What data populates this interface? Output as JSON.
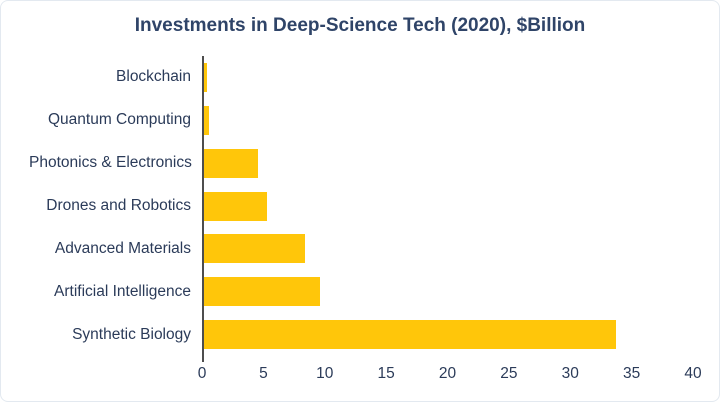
{
  "card": {
    "background": "#ffffff",
    "border_color": "#e3e9f0"
  },
  "chart_data": {
    "type": "bar",
    "orientation": "horizontal",
    "title": "Investments in Deep-Science Tech (2020), $Billion",
    "categories": [
      "Blockchain",
      "Quantum Computing",
      "Photonics & Electronics",
      "Drones and Robotics",
      "Advanced Materials",
      "Artificial Intelligence",
      "Synthetic Biology"
    ],
    "values": [
      0.4,
      0.6,
      4.6,
      5.3,
      8.4,
      9.6,
      33.7
    ],
    "xlabel": "",
    "ylabel": "",
    "xlim": [
      0,
      40
    ],
    "x_ticks": [
      "0",
      "5",
      "10",
      "15",
      "20",
      "25",
      "30",
      "35",
      "40"
    ],
    "grid": false,
    "legend": "none",
    "bar_color": "#FFC60A",
    "title_color": "#2F4468",
    "label_color": "#2B3B59",
    "axis_line_color": "#4d4d4d"
  }
}
